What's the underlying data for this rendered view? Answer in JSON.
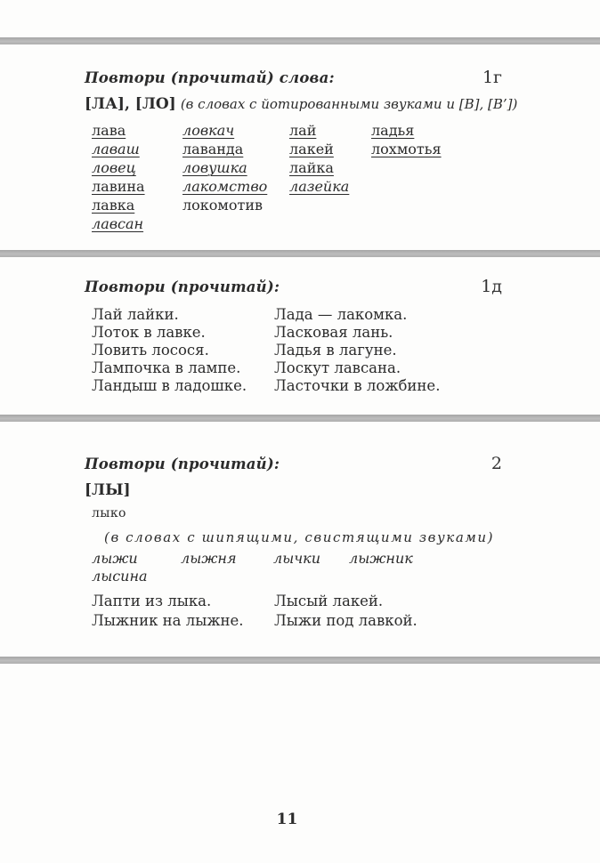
{
  "page": {
    "number": "11",
    "bar_color": "#b3b3b3"
  },
  "sections": [
    {
      "id": "1g",
      "title": "Повтори (прочитай) слова:",
      "number": "1г",
      "sounds": "[ЛА], [ЛО]",
      "sounds_note": "(в словах с йотированными звуками и [В], [В’])",
      "word_columns": [
        [
          {
            "text": "лава",
            "italic": false,
            "underline": true
          },
          {
            "text": "лаваш",
            "italic": true,
            "underline": true
          },
          {
            "text": "ловец",
            "italic": true,
            "underline": true
          },
          {
            "text": "лавина",
            "italic": false,
            "underline": true
          },
          {
            "text": "лавка",
            "italic": false,
            "underline": true
          },
          {
            "text": "лавсан",
            "italic": true,
            "underline": true
          }
        ],
        [
          {
            "text": "ловкач",
            "italic": true,
            "underline": true
          },
          {
            "text": "лаванда",
            "italic": false,
            "underline": true
          },
          {
            "text": "ловушка",
            "italic": true,
            "underline": true
          },
          {
            "text": "лакомство",
            "italic": true,
            "underline": true
          },
          {
            "text": "локомотив",
            "italic": false,
            "underline": false
          }
        ],
        [
          {
            "text": "лай",
            "italic": false,
            "underline": true
          },
          {
            "text": "лакей",
            "italic": false,
            "underline": true
          },
          {
            "text": "лайка",
            "italic": false,
            "underline": true
          },
          {
            "text": "лазейка",
            "italic": true,
            "underline": true
          }
        ],
        [
          {
            "text": "ладья",
            "italic": false,
            "underline": true
          },
          {
            "text": "лохмотья",
            "italic": false,
            "underline": true
          }
        ]
      ]
    },
    {
      "id": "1d",
      "title": "Повтори (прочитай):",
      "number": "1д",
      "phrase_columns": [
        [
          "Лай лайки.",
          "Лоток в лавке.",
          "Ловить лосося.",
          "Лампочка в лампе.",
          "Ландыш в ладошке."
        ],
        [
          "Лада — лакомка.",
          "Ласковая лань.",
          "Ладья в лагуне.",
          "Лоскут лавсана.",
          "Ласточки в ложбине."
        ]
      ]
    },
    {
      "id": "2",
      "title": "Повтори (прочитай):",
      "number": "2",
      "sounds": "[ЛЫ]",
      "single_word": "лыко",
      "note": "(в словах с шипящими, свистящими звуками)",
      "word_rows": [
        [
          {
            "text": "лыжи",
            "italic": true,
            "underline": false
          },
          {
            "text": "лыжня",
            "italic": true,
            "underline": false
          },
          {
            "text": "лычки",
            "italic": true,
            "underline": false
          },
          {
            "text": "лыжник",
            "italic": true,
            "underline": false
          }
        ],
        [
          {
            "text": "лысина",
            "italic": true,
            "underline": false
          }
        ]
      ],
      "phrase_columns": [
        [
          "Лапти из лыка.",
          "Лыжник на лыжне."
        ],
        [
          "Лысый лакей.",
          "Лыжи под лавкой."
        ]
      ]
    }
  ]
}
